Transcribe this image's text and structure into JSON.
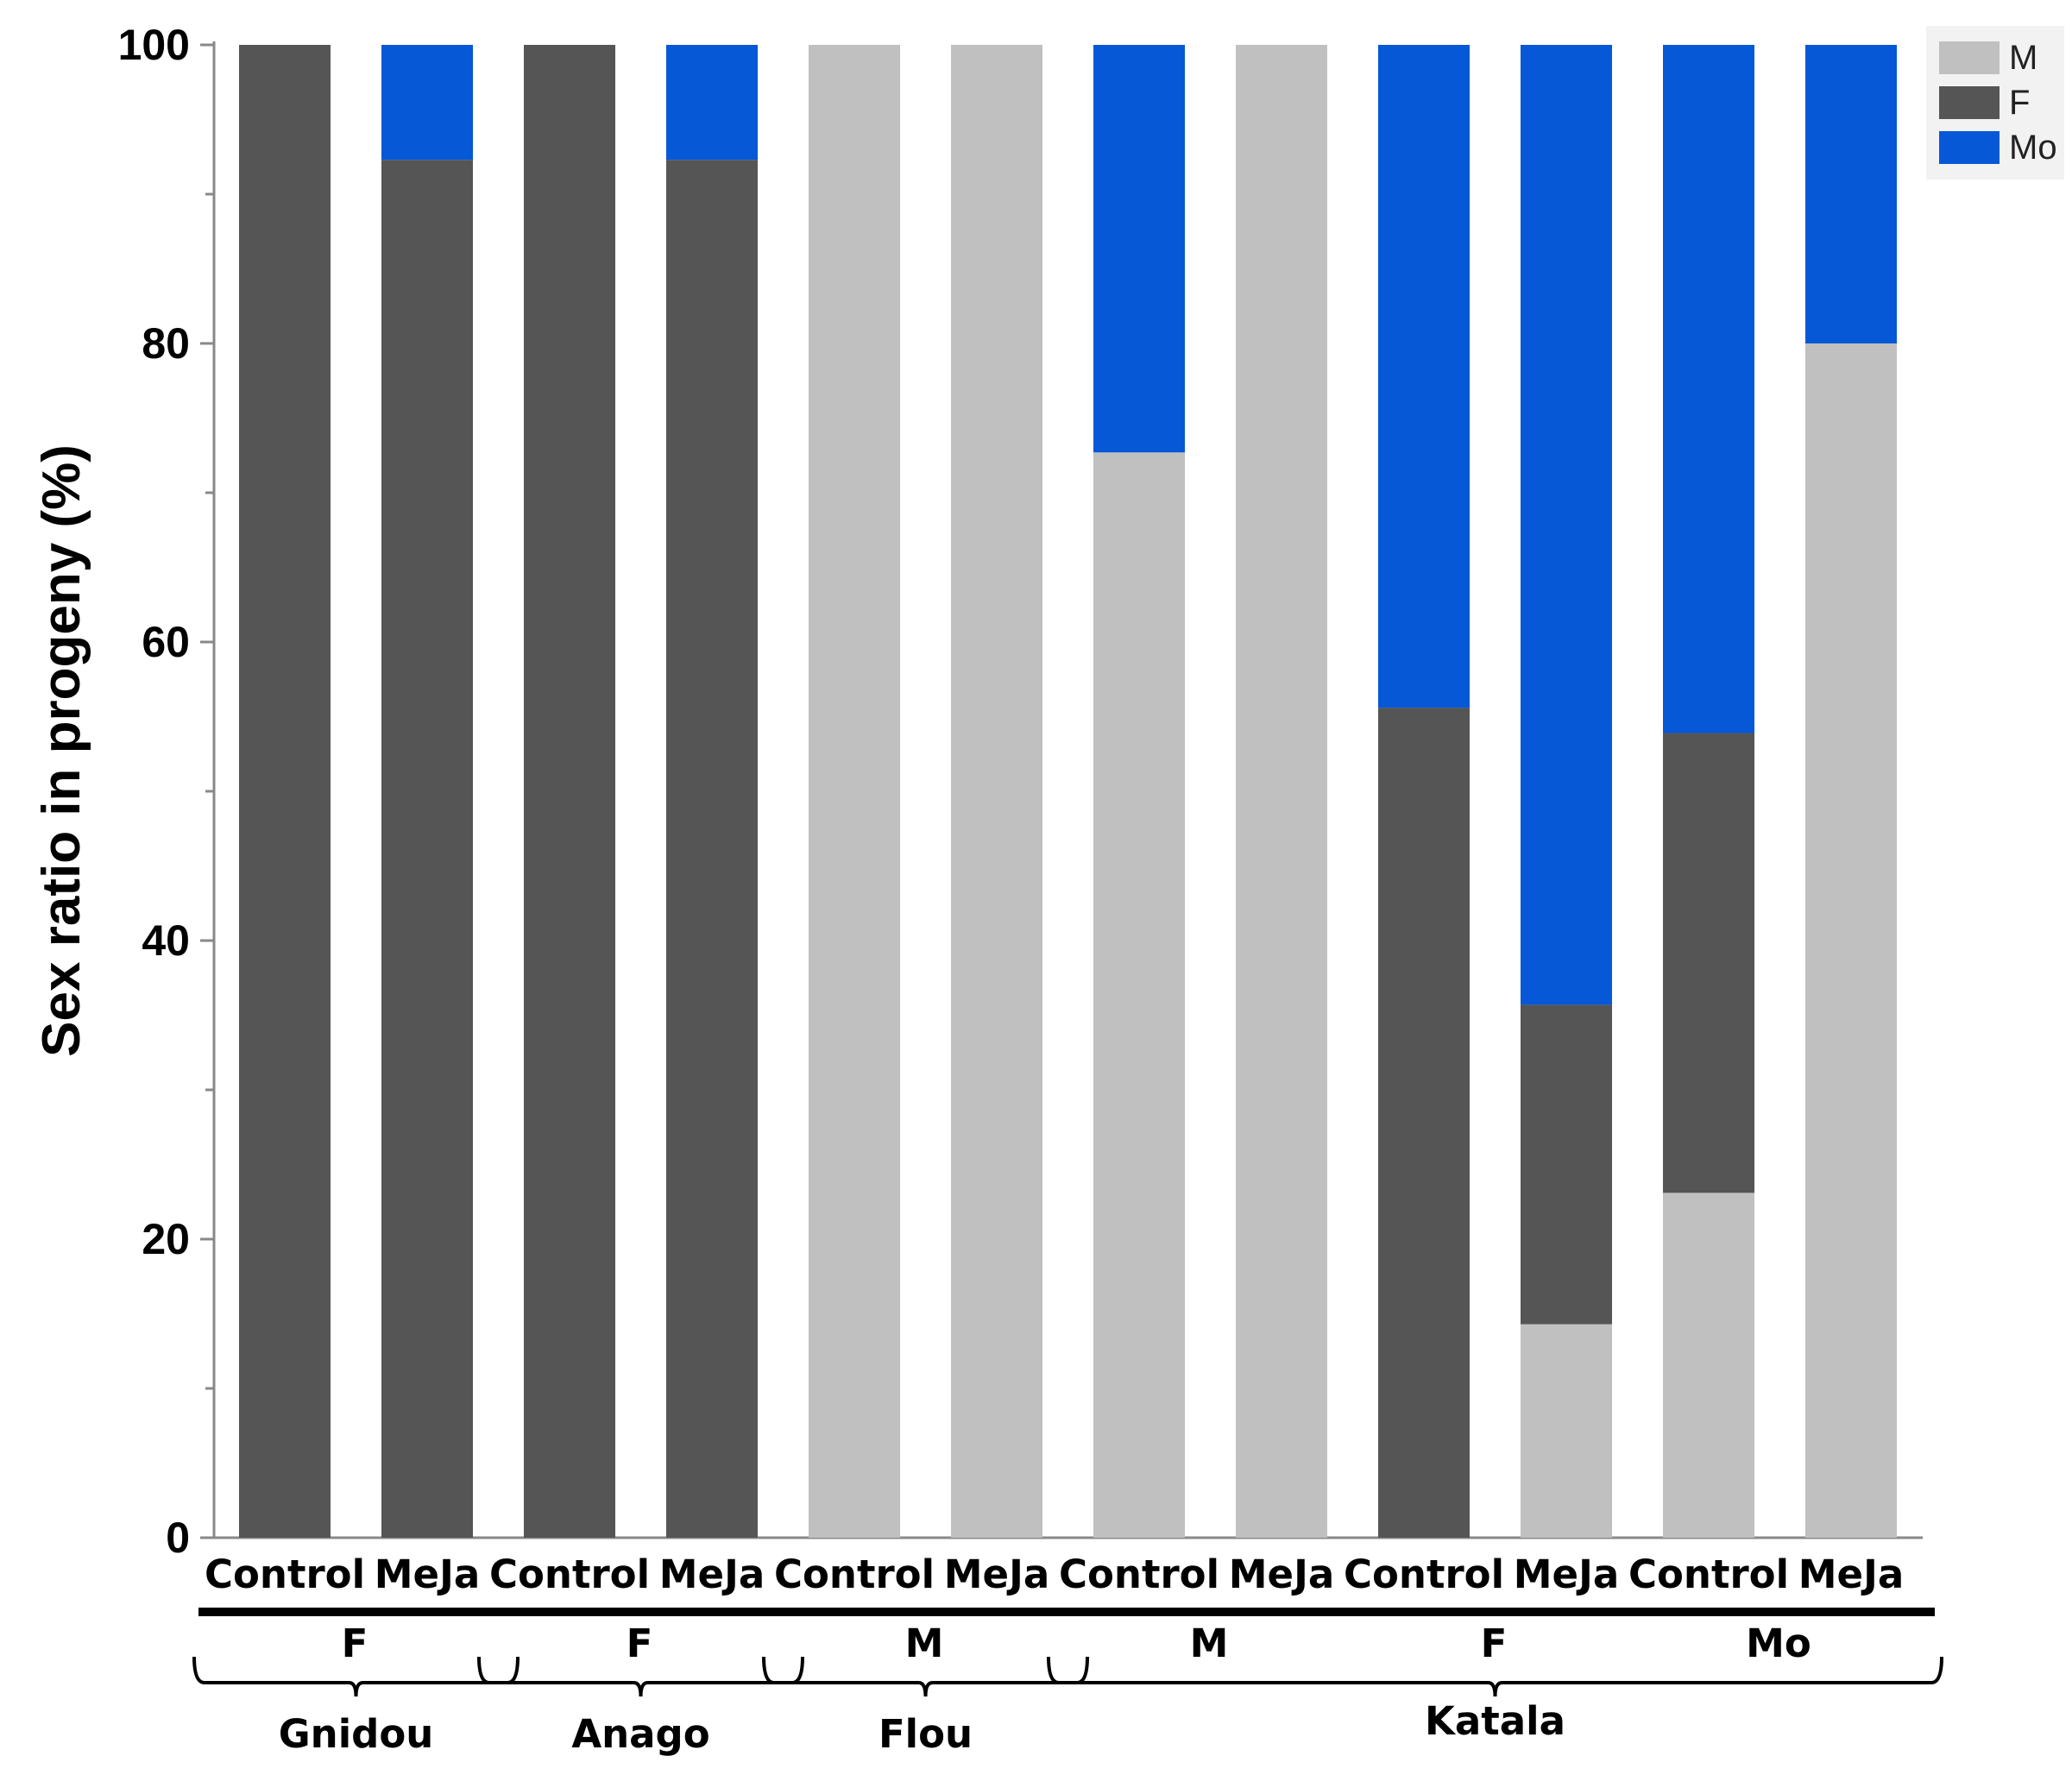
{
  "chart_data": {
    "type": "bar",
    "stacked": true,
    "ylabel": "Sex ratio  in progeny (%)",
    "ylim": [
      0,
      100
    ],
    "yticks": [
      "0",
      "20",
      "40",
      "60",
      "80",
      "100"
    ],
    "categories": [
      "Control",
      "MeJa",
      "Control",
      "MeJa",
      "Control",
      "MeJa",
      "Control",
      "MeJa",
      "Control",
      "MeJa",
      "Control",
      "MeJa"
    ],
    "series": [
      {
        "name": "M",
        "color": "#c0c0c0",
        "values": [
          0,
          0,
          0,
          0,
          100,
          100,
          72.7,
          100,
          0,
          14.3,
          23.1,
          80
        ]
      },
      {
        "name": "F",
        "color": "#555555",
        "values": [
          100,
          92.3,
          100,
          92.3,
          0,
          0,
          0,
          0,
          55.6,
          21.4,
          30.8,
          0
        ]
      },
      {
        "name": "Mo",
        "color": "#0658d6",
        "values": [
          0,
          7.7,
          0,
          7.7,
          0,
          0,
          27.3,
          0,
          44.4,
          64.3,
          46.1,
          20
        ]
      }
    ],
    "parent_groups": [
      "F",
      "F",
      "M",
      "M",
      "F",
      "Mo"
    ],
    "varieties": [
      "Gnidou",
      "Anago",
      "Flou",
      "Katala"
    ],
    "legend": [
      "M",
      "F",
      "Mo"
    ],
    "legend_position": "top-right"
  }
}
